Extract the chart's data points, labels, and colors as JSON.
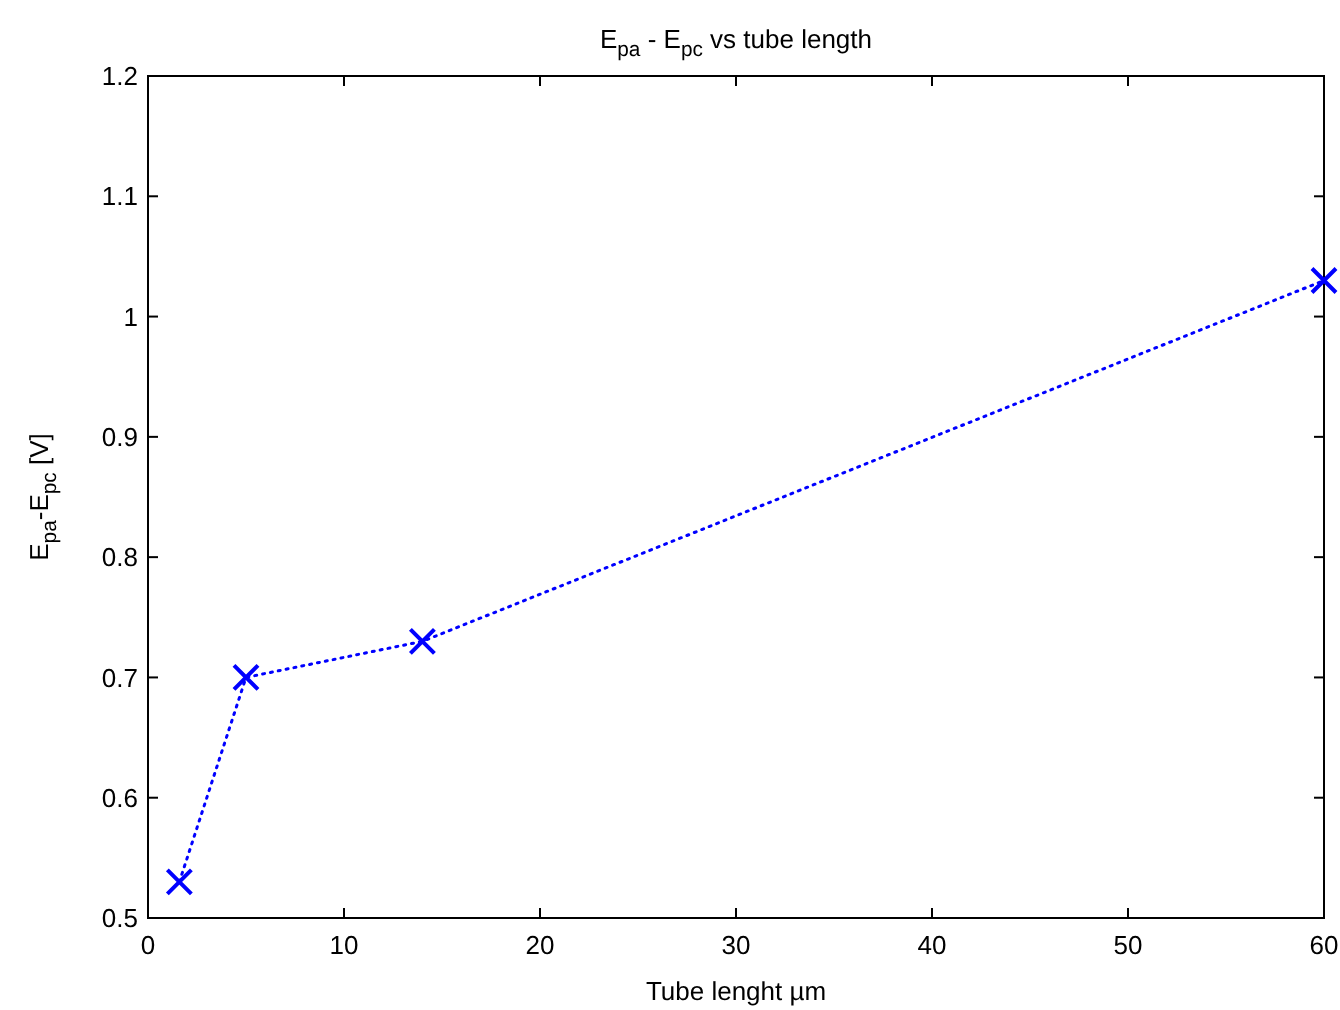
{
  "chart_data": {
    "type": "line",
    "title": "E$_{pa}$ - E$_{pc}$ vs tube length",
    "xlabel": "Tube lenght µm",
    "ylabel": "E$_{pa}$-E$_{pc}$ [V]",
    "x": [
      1.6,
      5,
      14,
      60
    ],
    "series": [
      {
        "color": "#0000ff",
        "values": [
          0.53,
          0.7,
          0.73,
          1.03
        ]
      }
    ],
    "xlim": [
      0,
      60
    ],
    "xticks": [
      0,
      10,
      20,
      30,
      40,
      50,
      60
    ],
    "ylim": [
      0.5,
      1.2
    ],
    "yticks": [
      0.5,
      0.6,
      0.7,
      0.8,
      0.9,
      1,
      1.1,
      1.2
    ],
    "marker": "cross",
    "line_style": "dotted",
    "grid": false
  }
}
